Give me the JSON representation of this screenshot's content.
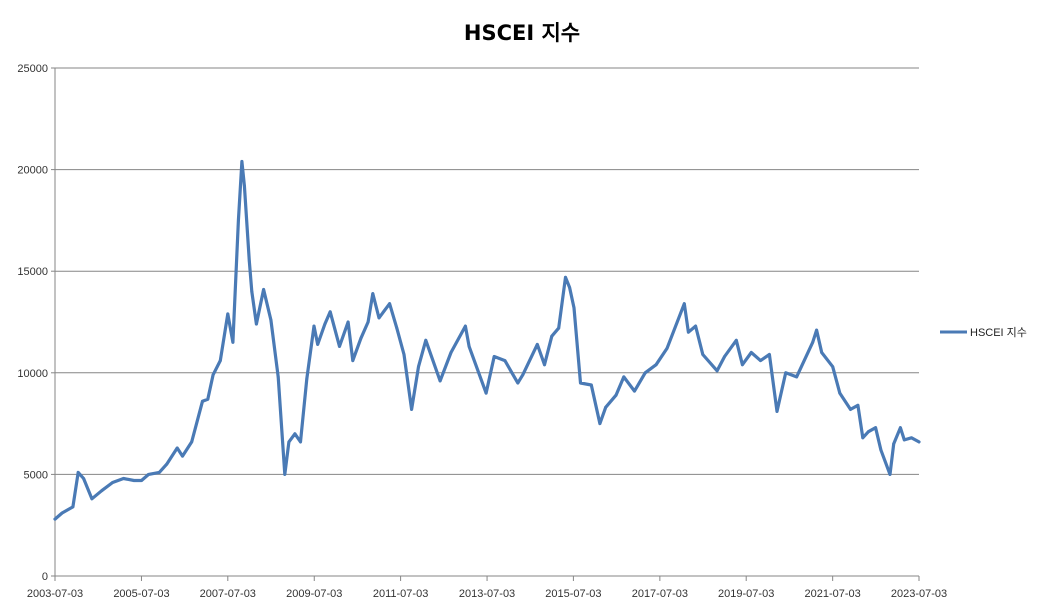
{
  "chart_data": {
    "type": "line",
    "title": "HSCEI 지수",
    "xlabel": "",
    "ylabel": "",
    "xlim": [
      "2003-07-03",
      "2023-07-03"
    ],
    "ylim": [
      0,
      25000
    ],
    "y_ticks": [
      0,
      5000,
      10000,
      15000,
      20000,
      25000
    ],
    "x_ticks": [
      "2003-07-03",
      "2005-07-03",
      "2007-07-03",
      "2009-07-03",
      "2011-07-03",
      "2013-07-03",
      "2015-07-03",
      "2017-07-03",
      "2019-07-03",
      "2021-07-03",
      "2023-07-03"
    ],
    "grid": "horizontal",
    "legend_position": "right",
    "series": [
      {
        "name": "HSCEI 지수",
        "color": "#4a7ab5",
        "x": [
          "2003-07-03",
          "2003-09-01",
          "2003-12-01",
          "2004-01-15",
          "2004-03-01",
          "2004-05-10",
          "2004-08-01",
          "2004-11-01",
          "2005-02-01",
          "2005-05-01",
          "2005-07-03",
          "2005-09-01",
          "2005-12-01",
          "2006-02-01",
          "2006-05-01",
          "2006-06-15",
          "2006-09-01",
          "2006-12-01",
          "2007-01-15",
          "2007-03-01",
          "2007-05-01",
          "2007-07-03",
          "2007-08-15",
          "2007-10-01",
          "2007-10-30",
          "2007-11-20",
          "2008-01-01",
          "2008-01-22",
          "2008-03-01",
          "2008-05-01",
          "2008-07-01",
          "2008-09-01",
          "2008-10-27",
          "2008-12-01",
          "2009-01-20",
          "2009-03-09",
          "2009-05-01",
          "2009-07-01",
          "2009-08-01",
          "2009-10-01",
          "2009-11-15",
          "2010-02-01",
          "2010-04-15",
          "2010-05-25",
          "2010-08-01",
          "2010-10-01",
          "2010-11-10",
          "2011-01-01",
          "2011-04-01",
          "2011-06-01",
          "2011-08-01",
          "2011-10-04",
          "2011-12-01",
          "2012-02-01",
          "2012-06-01",
          "2012-09-01",
          "2013-01-01",
          "2013-02-01",
          "2013-06-25",
          "2013-09-01",
          "2013-12-01",
          "2014-03-20",
          "2014-05-01",
          "2014-09-01",
          "2014-11-01",
          "2015-01-01",
          "2015-03-01",
          "2015-04-27",
          "2015-06-01",
          "2015-07-08",
          "2015-09-01",
          "2015-12-01",
          "2016-02-12",
          "2016-04-01",
          "2016-06-27",
          "2016-09-01",
          "2016-12-01",
          "2017-03-01",
          "2017-06-01",
          "2017-09-01",
          "2018-01-26",
          "2018-03-01",
          "2018-05-01",
          "2018-07-01",
          "2018-10-30",
          "2019-01-01",
          "2019-04-10",
          "2019-06-01",
          "2019-08-15",
          "2019-11-01",
          "2020-01-15",
          "2020-03-19",
          "2020-06-01",
          "2020-09-01",
          "2021-01-15",
          "2021-02-17",
          "2021-04-01",
          "2021-07-03",
          "2021-09-01",
          "2021-12-01",
          "2022-02-01",
          "2022-03-15",
          "2022-05-01",
          "2022-07-01",
          "2022-08-15",
          "2022-10-31",
          "2022-12-01",
          "2023-01-27",
          "2023-03-01",
          "2023-05-01",
          "2023-07-03"
        ],
        "values": [
          2800,
          3100,
          3400,
          5100,
          4800,
          3800,
          4200,
          4600,
          4800,
          4700,
          4700,
          5000,
          5100,
          5500,
          6300,
          5900,
          6600,
          8600,
          8700,
          9900,
          10600,
          12900,
          11500,
          17500,
          20400,
          19200,
          15500,
          14000,
          12400,
          14100,
          12600,
          9800,
          5000,
          6600,
          7000,
          6600,
          9700,
          12300,
          11400,
          12400,
          13000,
          11300,
          12500,
          10600,
          11700,
          12500,
          13900,
          12700,
          13400,
          12200,
          10900,
          8200,
          10300,
          11600,
          9600,
          11000,
          12300,
          11300,
          9000,
          10800,
          10600,
          9500,
          9900,
          11400,
          10400,
          11800,
          12200,
          14700,
          14200,
          13200,
          9500,
          9400,
          7500,
          8300,
          8900,
          9800,
          9100,
          10000,
          10400,
          11200,
          13400,
          12000,
          12300,
          10900,
          10100,
          10800,
          11600,
          10400,
          11000,
          10600,
          10900,
          8100,
          10000,
          9800,
          11500,
          12100,
          11000,
          10300,
          9000,
          8200,
          8400,
          6800,
          7100,
          7300,
          6200,
          5000,
          6500,
          7300,
          6700,
          6800,
          6600
        ]
      }
    ]
  }
}
